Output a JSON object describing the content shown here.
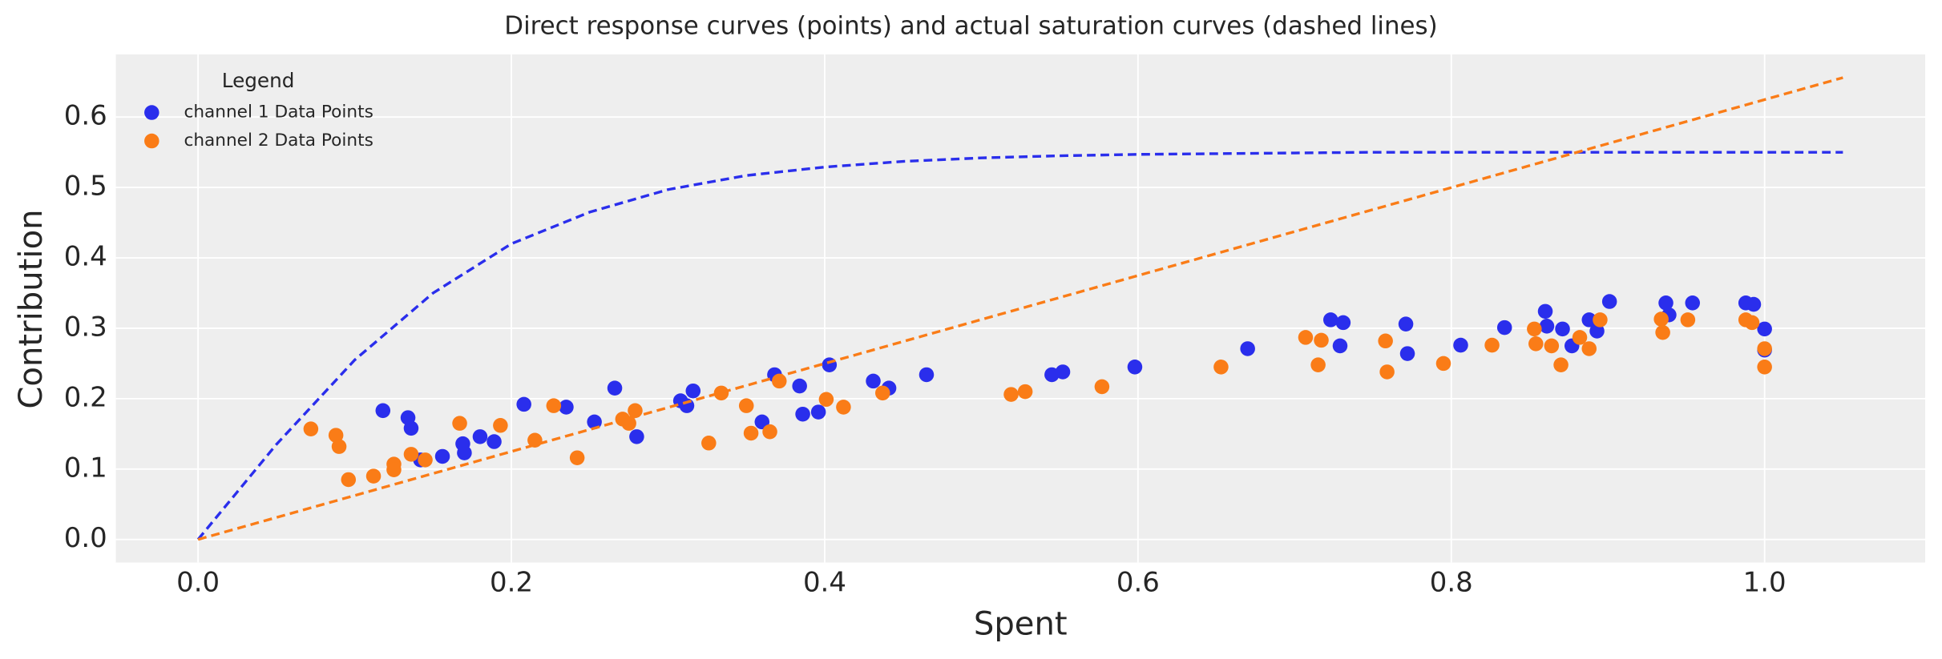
{
  "chart_data": {
    "type": "scatter",
    "title": "Direct response curves (points) and actual saturation curves (dashed lines)",
    "x_label": "Spent",
    "y_label": "Contribution",
    "xlim": [
      -0.0525,
      1.1025
    ],
    "ylim": [
      -0.0328,
      0.689
    ],
    "xticks": [
      {
        "value": 0,
        "label": "0.0"
      },
      0.2,
      0.4,
      0.6,
      0.8,
      {
        "value": 1,
        "label": "1.0"
      }
    ],
    "yticks": [
      {
        "value": 0,
        "label": "0.0"
      },
      0.1,
      0.2,
      0.3,
      0.4,
      0.5,
      0.6
    ],
    "grid": true,
    "legend": {
      "title": "Legend",
      "position": "upper left"
    },
    "series": [
      {
        "name": "channel 1 Data Points",
        "color": "#2a2eec",
        "x": [
          0.118,
          0.134,
          0.136,
          0.142,
          0.156,
          0.169,
          0.17,
          0.18,
          0.189,
          0.208,
          0.235,
          0.253,
          0.266,
          0.28,
          0.308,
          0.312,
          0.316,
          0.36,
          0.368,
          0.384,
          0.386,
          0.396,
          0.403,
          0.431,
          0.441,
          0.465,
          0.545,
          0.552,
          0.598,
          0.67,
          0.723,
          0.729,
          0.731,
          0.771,
          0.772,
          0.806,
          0.834,
          0.86,
          0.861,
          0.871,
          0.877,
          0.888,
          0.893,
          0.901,
          0.937,
          0.939,
          0.954,
          0.988,
          0.993,
          1.0,
          1.0
        ],
        "values": [
          0.183,
          0.173,
          0.158,
          0.113,
          0.118,
          0.136,
          0.123,
          0.146,
          0.139,
          0.192,
          0.188,
          0.167,
          0.215,
          0.146,
          0.197,
          0.19,
          0.211,
          0.167,
          0.234,
          0.218,
          0.178,
          0.181,
          0.248,
          0.225,
          0.215,
          0.234,
          0.234,
          0.238,
          0.245,
          0.271,
          0.312,
          0.275,
          0.308,
          0.306,
          0.264,
          0.276,
          0.301,
          0.324,
          0.303,
          0.299,
          0.275,
          0.312,
          0.296,
          0.338,
          0.336,
          0.319,
          0.336,
          0.336,
          0.334,
          0.299,
          0.269
        ]
      },
      {
        "name": "channel 2 Data Points",
        "color": "#fa7c17",
        "x": [
          0.072,
          0.088,
          0.09,
          0.096,
          0.112,
          0.125,
          0.125,
          0.136,
          0.145,
          0.167,
          0.193,
          0.215,
          0.227,
          0.242,
          0.271,
          0.275,
          0.279,
          0.326,
          0.334,
          0.35,
          0.353,
          0.365,
          0.371,
          0.401,
          0.412,
          0.437,
          0.519,
          0.528,
          0.577,
          0.653,
          0.707,
          0.717,
          0.715,
          0.758,
          0.759,
          0.795,
          0.826,
          0.853,
          0.854,
          0.864,
          0.87,
          0.882,
          0.888,
          0.895,
          0.934,
          0.935,
          0.951,
          0.988,
          0.992,
          1.0,
          1.0
        ],
        "values": [
          0.157,
          0.148,
          0.132,
          0.085,
          0.09,
          0.107,
          0.099,
          0.121,
          0.113,
          0.165,
          0.162,
          0.141,
          0.19,
          0.116,
          0.171,
          0.165,
          0.183,
          0.137,
          0.208,
          0.19,
          0.151,
          0.153,
          0.225,
          0.199,
          0.188,
          0.208,
          0.206,
          0.21,
          0.217,
          0.245,
          0.287,
          0.283,
          0.248,
          0.282,
          0.238,
          0.25,
          0.276,
          0.299,
          0.278,
          0.275,
          0.248,
          0.287,
          0.271,
          0.312,
          0.313,
          0.294,
          0.312,
          0.312,
          0.308,
          0.271,
          0.245
        ]
      }
    ],
    "lines": [
      {
        "color": "#2a2eec",
        "linestyle": "dashed",
        "x": [
          0,
          0.05,
          0.1,
          0.15,
          0.2,
          0.25,
          0.3,
          0.35,
          0.4,
          0.45,
          0.5,
          0.55,
          0.6,
          0.65,
          0.7,
          0.75,
          0.8,
          0.85,
          0.9,
          0.95,
          1.0,
          1.05
        ],
        "values": [
          0,
          0.135,
          0.255,
          0.35,
          0.42,
          0.465,
          0.497,
          0.517,
          0.529,
          0.537,
          0.542,
          0.545,
          0.547,
          0.548,
          0.549,
          0.55,
          0.55,
          0.55,
          0.55,
          0.55,
          0.55,
          0.55
        ]
      },
      {
        "color": "#fa7c17",
        "linestyle": "dashed",
        "x": [
          0,
          1.05
        ],
        "values": [
          0,
          0.656
        ]
      }
    ]
  }
}
